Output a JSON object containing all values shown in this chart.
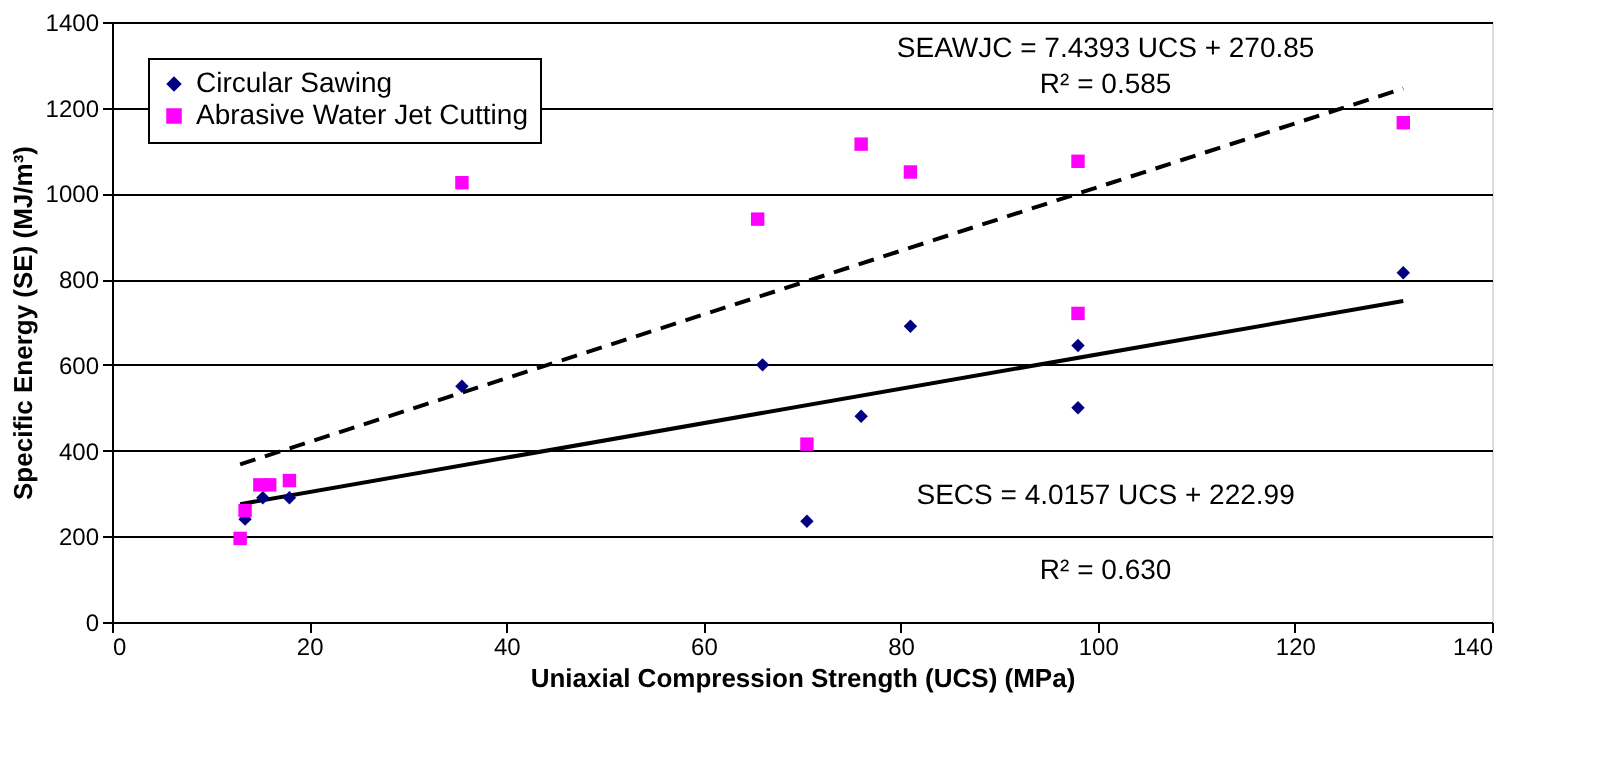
{
  "chart_data": {
    "type": "scatter",
    "xlabel": "Uniaxial Compression Strength (UCS) (MPa)",
    "ylabel": "Specific Energy (SE) (MJ/m³)",
    "xlim": [
      0,
      140
    ],
    "xticks": [
      0,
      20,
      40,
      60,
      80,
      100,
      120,
      140
    ],
    "ylim": [
      0,
      1400
    ],
    "yticks": [
      0,
      200,
      400,
      600,
      800,
      1000,
      1200,
      1400
    ],
    "grid": "y",
    "legend": "top left",
    "series": [
      {
        "name": "Circular Sawing",
        "color": "#000080",
        "marker": "diamond",
        "x": [
          13.5,
          15.3,
          18,
          35.5,
          66,
          70.5,
          76,
          81,
          98,
          98,
          131
        ],
        "values": [
          240,
          290,
          290,
          550,
          600,
          235,
          480,
          690,
          500,
          645,
          815
        ]
      },
      {
        "name": "Abrasive Water Jet Cutting",
        "color": "#ff00ff",
        "marker": "square",
        "x": [
          13,
          13.5,
          15,
          16,
          18,
          35.5,
          65.5,
          70.5,
          76,
          81,
          98,
          98,
          131
        ],
        "values": [
          195,
          260,
          320,
          320,
          330,
          1025,
          940,
          415,
          1115,
          1050,
          1075,
          720,
          1165
        ]
      },
      {
        "type": "line",
        "color": "#000000",
        "line_style": "solid",
        "marker": "none",
        "x": [
          13,
          131
        ],
        "values": [
          275,
          749
        ]
      },
      {
        "type": "line",
        "color": "#000000",
        "line_style": "dashed",
        "marker": "none",
        "x": [
          13,
          131
        ],
        "values": [
          368,
          1245
        ]
      }
    ],
    "annotations": [
      "SEAWJC = 7.4393 UCS + 270.85",
      "R² = 0.585",
      "SECS = 4.0157 UCS + 222.99",
      "R² = 0.630"
    ]
  }
}
